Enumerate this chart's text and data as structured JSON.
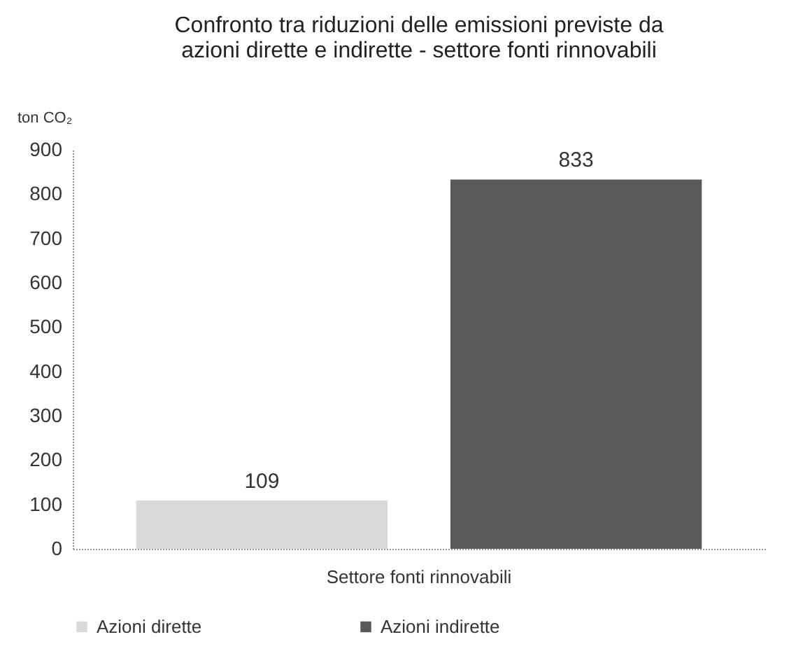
{
  "chart_data": {
    "type": "bar",
    "title": "Confronto tra riduzioni delle emissioni previste da azioni dirette e indirette - settore fonti rinnovabili",
    "ylabel": "ton CO₂",
    "categories": [
      "Settore fonti rinnovabili"
    ],
    "series": [
      {
        "name": "Azioni dirette",
        "color": "#d9d9d9",
        "values": [
          109
        ]
      },
      {
        "name": "Azioni indirette",
        "color": "#595959",
        "values": [
          833
        ]
      }
    ],
    "ylim": [
      0,
      900
    ],
    "yticks": [
      0,
      100,
      200,
      300,
      400,
      500,
      600,
      700,
      800,
      900
    ],
    "grid": false,
    "legend": "bottom",
    "data_labels": true
  }
}
